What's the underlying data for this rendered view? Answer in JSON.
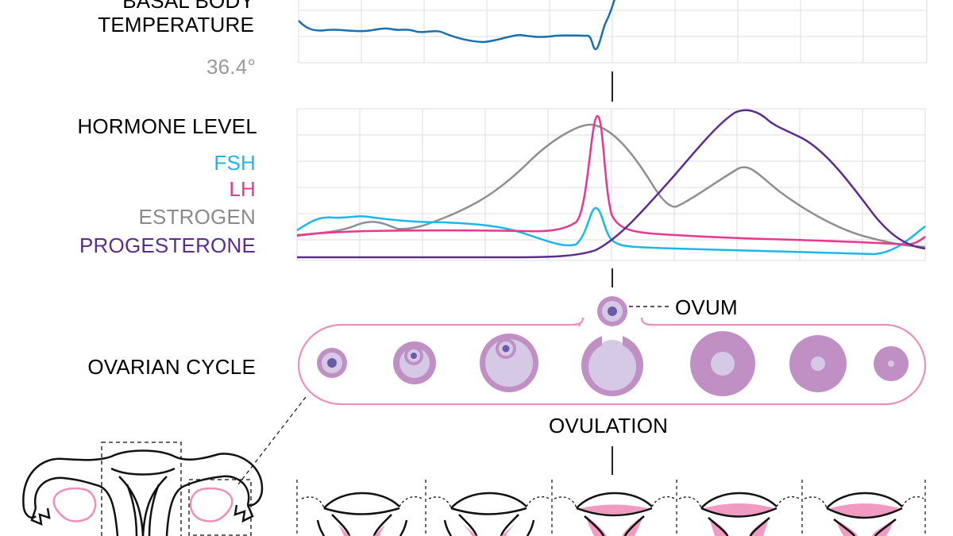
{
  "temperature": {
    "title_line1": "BASAL BODY",
    "title_line2": "TEMPERATURE",
    "low_value": "36.4°"
  },
  "hormones": {
    "title": "HORMONE LEVEL",
    "legend": [
      {
        "label": "FSH",
        "color": "#1cb8e8"
      },
      {
        "label": "LH",
        "color": "#e8378f"
      },
      {
        "label": "ESTROGEN",
        "color": "#8a8a8a"
      },
      {
        "label": "PROGESTERONE",
        "color": "#5b2d91"
      }
    ]
  },
  "ovary": {
    "title": "OVARIAN CYCLE",
    "ovum_label": "OVUM",
    "ovulation_label": "OVULATION"
  },
  "colors": {
    "temperature_line": "#1a6fae",
    "grid": "#d9d9d9",
    "follicle_outer": "#c08fc4",
    "follicle_inner": "#d6c9e6",
    "nucleus": "#6b5aa8",
    "pink": "#ef8fb8",
    "uterus_lining": "#f29bc2"
  }
}
